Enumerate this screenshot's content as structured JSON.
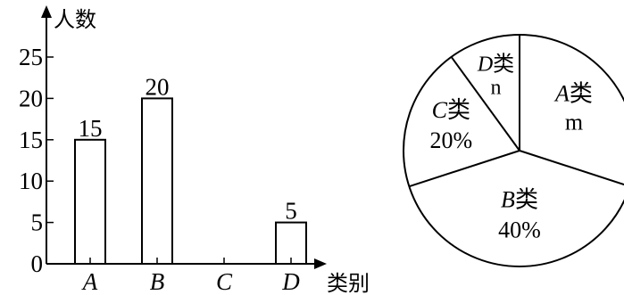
{
  "chart_data": [
    {
      "type": "bar",
      "title": "",
      "ylabel": "人数",
      "xlabel": "类别",
      "categories": [
        "A",
        "B",
        "C",
        "D"
      ],
      "values": [
        15,
        20,
        null,
        5
      ],
      "data_labels": [
        "15",
        "20",
        "",
        "5"
      ],
      "yticks": [
        0,
        5,
        10,
        15,
        20,
        25
      ],
      "ylim": [
        0,
        25
      ],
      "grid": false,
      "colors": {
        "bar_fill": "#ffffff",
        "bar_stroke": "#000000",
        "axis": "#000000"
      }
    },
    {
      "type": "pie",
      "title": "",
      "slices": [
        {
          "category": "A",
          "suffix": "类",
          "value_label": "m",
          "percent": 30
        },
        {
          "category": "B",
          "suffix": "类",
          "value_label": "40%",
          "percent": 40
        },
        {
          "category": "C",
          "suffix": "类",
          "value_label": "20%",
          "percent": 20
        },
        {
          "category": "D",
          "suffix": "类",
          "value_label": "n",
          "percent": 10
        }
      ],
      "colors": {
        "slice_fill": "#ffffff",
        "stroke": "#000000"
      }
    }
  ]
}
